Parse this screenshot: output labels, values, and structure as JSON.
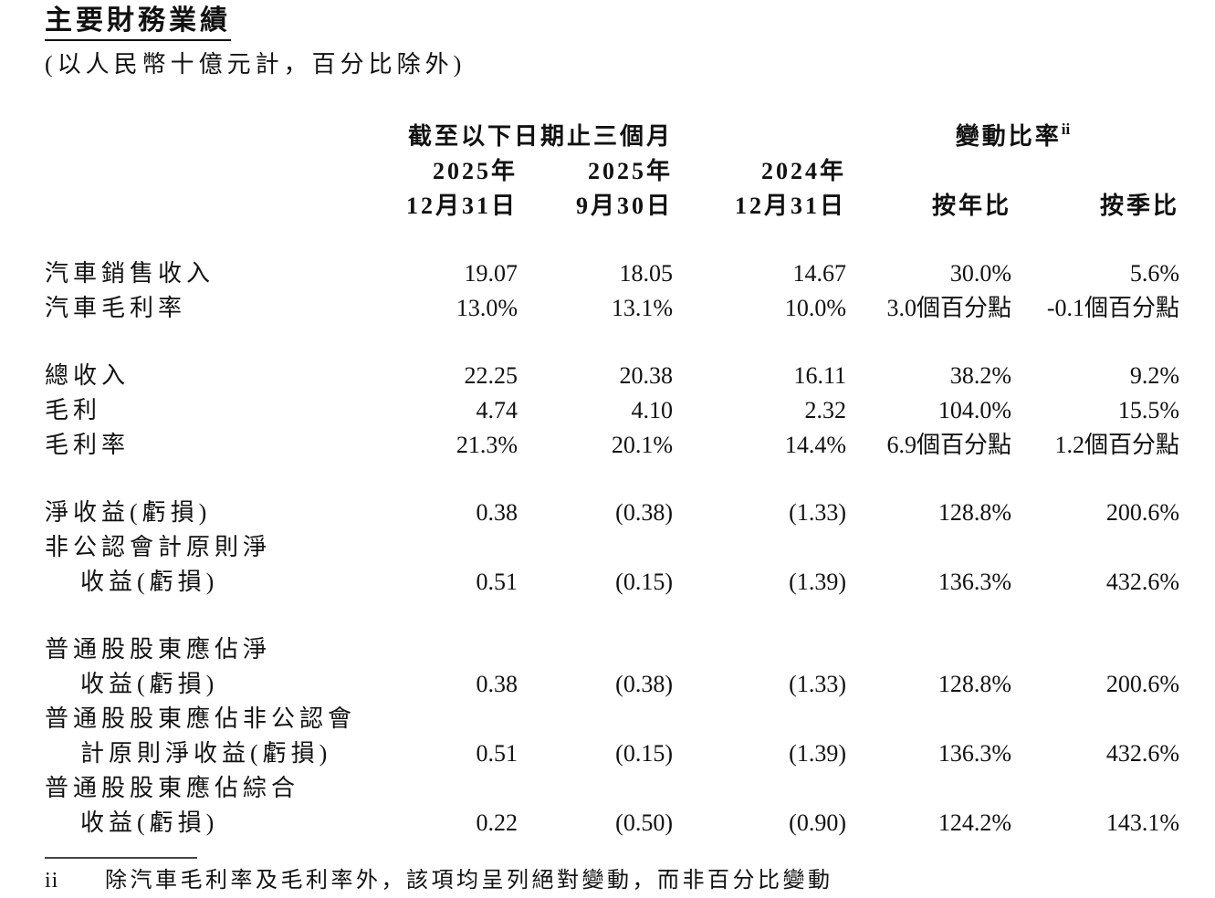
{
  "page": {
    "title": "主要財務業績",
    "subtitle": "(以人民幣十億元計，百分比除外)"
  },
  "table": {
    "period_group_header": "截至以下日期止三個月",
    "change_group_header": "變動比率",
    "change_group_superscript": "ii",
    "columns": {
      "col1_line1": "2025年",
      "col1_line2": "12月31日",
      "col2_line1": "2025年",
      "col2_line2": "9月30日",
      "col3_line1": "2024年",
      "col3_line2": "12月31日",
      "col4_line2": "按年比",
      "col5_line2": "按季比"
    },
    "rows": [
      {
        "label": "汽車銷售收入",
        "values": [
          "19.07",
          "18.05",
          "14.67",
          "30.0%",
          "5.6%"
        ]
      },
      {
        "label": "汽車毛利率",
        "values": [
          "13.0%",
          "13.1%",
          "10.0%",
          "3.0個百分點",
          "-0.1個百分點"
        ]
      },
      {
        "label": "總收入",
        "values": [
          "22.25",
          "20.38",
          "16.11",
          "38.2%",
          "9.2%"
        ]
      },
      {
        "label": "毛利",
        "values": [
          "4.74",
          "4.10",
          "2.32",
          "104.0%",
          "15.5%"
        ]
      },
      {
        "label": "毛利率",
        "values": [
          "21.3%",
          "20.1%",
          "14.4%",
          "6.9個百分點",
          "1.2個百分點"
        ]
      },
      {
        "label": "淨收益(虧損)",
        "values": [
          "0.38",
          "(0.38)",
          "(1.33)",
          "128.8%",
          "200.6%"
        ]
      },
      {
        "label_line1": "非公認會計原則淨",
        "label_line2": "收益(虧損)",
        "values": [
          "0.51",
          "(0.15)",
          "(1.39)",
          "136.3%",
          "432.6%"
        ]
      },
      {
        "label_line1": "普通股股東應佔淨",
        "label_line2": "收益(虧損)",
        "values": [
          "0.38",
          "(0.38)",
          "(1.33)",
          "128.8%",
          "200.6%"
        ]
      },
      {
        "label_line1": "普通股股東應佔非公認會",
        "label_line2": "計原則淨收益(虧損)",
        "values": [
          "0.51",
          "(0.15)",
          "(1.39)",
          "136.3%",
          "432.6%"
        ]
      },
      {
        "label_line1": "普通股股東應佔綜合",
        "label_line2": "收益(虧損)",
        "values": [
          "0.22",
          "(0.50)",
          "(0.90)",
          "124.2%",
          "143.1%"
        ]
      }
    ]
  },
  "footnote": {
    "marker": "ii",
    "text": "除汽車毛利率及毛利率外，該項均呈列絕對變動，而非百分比變動"
  }
}
